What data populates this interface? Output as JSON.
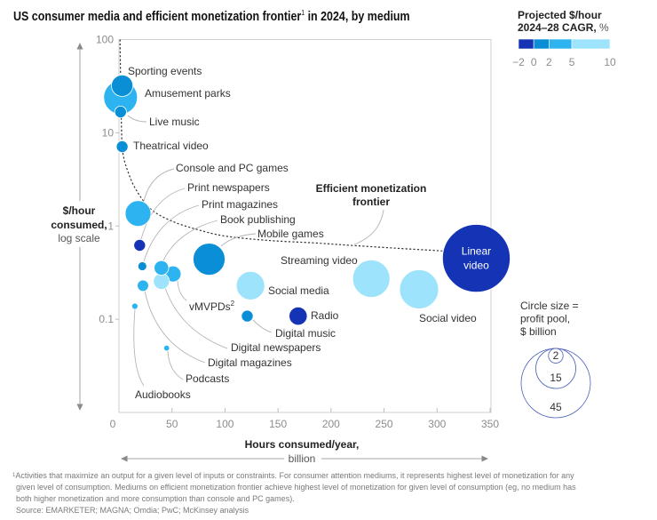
{
  "footnotes": {
    "marker": "1",
    "lines": [
      "Activities that maximize an output for a given level of inputs or constraints. For consumer attention mediums, it represents highest level of monetization for any",
      "given level of consumption. Mediums on efficient monetization frontier achieve highest level of monetization for given level of consumption (eg, no medium has",
      "both higher monetization and more consumption than console and PC games)."
    ],
    "source": "Source: EMARKETER; MAGNA; Omdia; PwC; McKinsey analysis"
  },
  "chart_data": {
    "type": "scatter",
    "subtype": "bubble",
    "title": "US consumer media and efficient monetization frontier",
    "title_sup": "1",
    "title_rest": " in 2024, by medium",
    "xlabel": "Hours consumed/year,",
    "xlabel_unit": "billion",
    "ylabel_line1": "$/hour",
    "ylabel_line2": "consumed,",
    "ylabel_unit": "log scale",
    "xlim": [
      0,
      350
    ],
    "ylim": [
      0.01,
      100
    ],
    "yscale": "log",
    "grid": false,
    "x_ticks": [
      0,
      50,
      100,
      150,
      200,
      250,
      300,
      350
    ],
    "y_ticks": [
      {
        "value": 100,
        "label": "100"
      },
      {
        "value": 10,
        "label": "10"
      },
      {
        "value": 1,
        "label": "1"
      },
      {
        "value": 0.1,
        "label": "0.1"
      }
    ],
    "color_legend": {
      "title_line1": "Projected $/hour",
      "title_line2": "2024–28 CAGR,",
      "title_unit": " %",
      "placement": "top-right",
      "bins": [
        {
          "band": "-2 to 0",
          "from": -2,
          "to": 0,
          "color": "#1533b5"
        },
        {
          "band": "0 to 2",
          "from": 0,
          "to": 2,
          "color": "#0a8fd7"
        },
        {
          "band": "2 to 5",
          "from": 2,
          "to": 5,
          "color": "#2db4f0"
        },
        {
          "band": "5 to 10",
          "from": 5,
          "to": 10,
          "color": "#9de3fb"
        }
      ],
      "ticks": [
        {
          "value": -2,
          "label": "−2"
        },
        {
          "value": 0,
          "label": "0"
        },
        {
          "value": 2,
          "label": "2"
        },
        {
          "value": 5,
          "label": "5"
        },
        {
          "value": 10,
          "label": "10"
        }
      ]
    },
    "size_legend": {
      "title": [
        "Circle size =",
        "profit pool,",
        "$ billion"
      ],
      "placement": "right",
      "values": [
        45,
        15,
        2
      ],
      "stroke_color": "#4b60b8"
    },
    "frontier": {
      "label": [
        "Efficient monetization",
        "frontier"
      ],
      "points": [
        [
          1,
          100
        ],
        [
          1.7,
          29.5
        ],
        [
          2.5,
          9.8
        ],
        [
          3.4,
          6.3
        ],
        [
          7.5,
          4.1
        ],
        [
          16,
          2.46
        ],
        [
          30,
          1.52
        ],
        [
          49,
          1.14
        ],
        [
          72,
          0.93
        ],
        [
          100,
          0.78
        ],
        [
          141,
          0.7
        ],
        [
          183,
          0.66
        ],
        [
          223,
          0.615
        ],
        [
          265,
          0.575
        ],
        [
          305,
          0.54
        ]
      ]
    },
    "series": [
      {
        "name": "Sporting events",
        "x": 3,
        "y": 32,
        "profit_pool": 4.3,
        "cagr_band": "0 to 2"
      },
      {
        "name": "Amusement parks",
        "x": 1.5,
        "y": 24,
        "profit_pool": 10.7,
        "cagr_band": "2 to 5"
      },
      {
        "name": "Live music",
        "x": 1.5,
        "y": 16.7,
        "profit_pool": 1.3,
        "cagr_band": "0 to 2"
      },
      {
        "name": "Theatrical video",
        "x": 3,
        "y": 7.1,
        "profit_pool": 1.3,
        "cagr_band": "0 to 2"
      },
      {
        "name": "Console and PC games",
        "x": 18,
        "y": 1.36,
        "profit_pool": 6.2,
        "cagr_band": "2 to 5"
      },
      {
        "name": "Print newspapers",
        "x": 19.5,
        "y": 0.62,
        "profit_pool": 1.3,
        "cagr_band": "-2 to 0"
      },
      {
        "name": "Print magazines",
        "x": 22,
        "y": 0.37,
        "profit_pool": 0.74,
        "cagr_band": "0 to 2"
      },
      {
        "name": "Book publishing",
        "x": 40,
        "y": 0.355,
        "profit_pool": 2.0,
        "cagr_band": "2 to 5"
      },
      {
        "name": "vMVPDs",
        "name_sup": "2",
        "x": 51,
        "y": 0.306,
        "profit_pool": 2.4,
        "cagr_band": "2 to 5"
      },
      {
        "name": "Digital newspapers",
        "x": 40,
        "y": 0.255,
        "profit_pool": 2.4,
        "cagr_band": "5 to 10"
      },
      {
        "name": "Digital magazines",
        "x": 22.6,
        "y": 0.229,
        "profit_pool": 1.2,
        "cagr_band": "2 to 5"
      },
      {
        "name": "Audiobooks",
        "x": 15,
        "y": 0.138,
        "profit_pool": 0.36,
        "cagr_band": "2 to 5"
      },
      {
        "name": "Podcasts",
        "x": 45,
        "y": 0.049,
        "profit_pool": 0.32,
        "cagr_band": "2 to 5"
      },
      {
        "name": "Mobile games",
        "x": 85,
        "y": 0.44,
        "profit_pool": 9.6,
        "cagr_band": "0 to 2"
      },
      {
        "name": "Streaming video",
        "x": 238,
        "y": 0.272,
        "profit_pool": 13.1,
        "cagr_band": "5 to 10"
      },
      {
        "name": "Social media",
        "x": 124,
        "y": 0.229,
        "profit_pool": 7.6,
        "cagr_band": "5 to 10"
      },
      {
        "name": "Digital music",
        "x": 121,
        "y": 0.108,
        "profit_pool": 1.3,
        "cagr_band": "0 to 2"
      },
      {
        "name": "Radio",
        "x": 169,
        "y": 0.108,
        "profit_pool": 3.1,
        "cagr_band": "-2 to 0"
      },
      {
        "name": "Social video",
        "x": 283,
        "y": 0.209,
        "profit_pool": 14.3,
        "cagr_band": "5 to 10"
      },
      {
        "name": "Linear video",
        "label_lines": [
          "Linear",
          "video"
        ],
        "x": 337,
        "y": 0.45,
        "profit_pool": 43,
        "cagr_band": "-2 to 0"
      }
    ]
  }
}
